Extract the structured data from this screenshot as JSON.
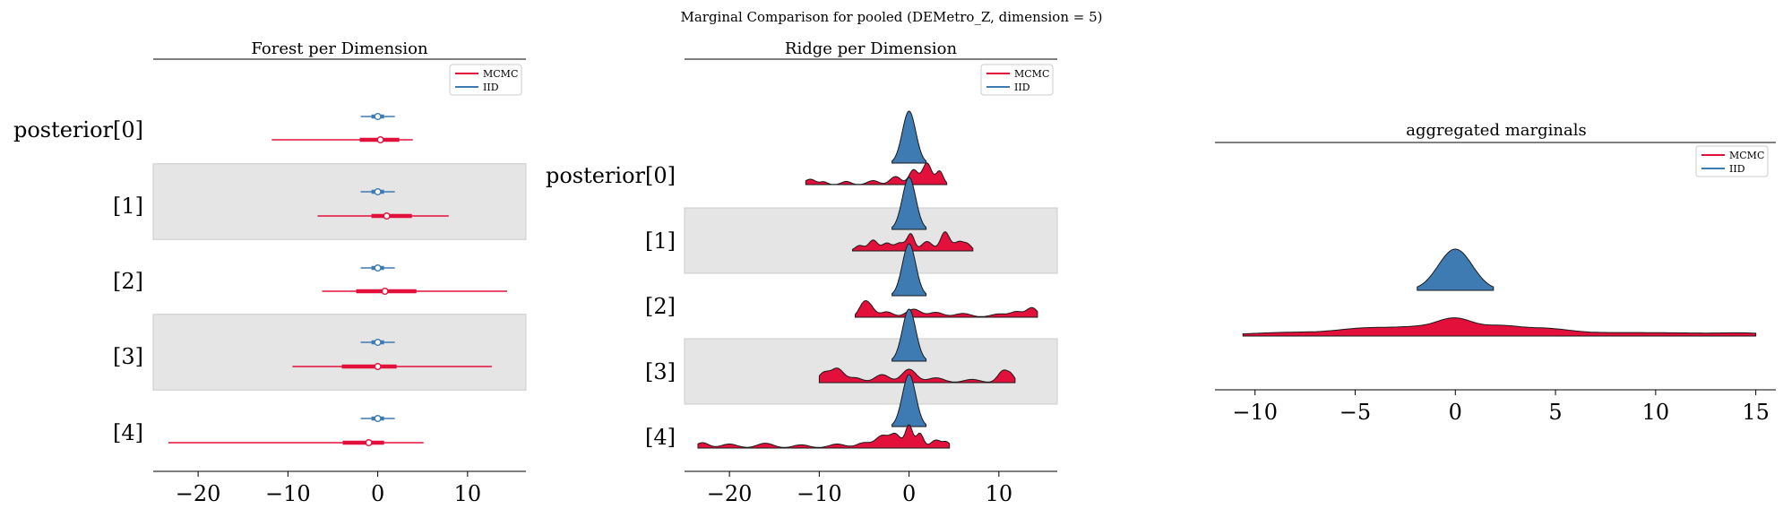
{
  "figure": {
    "suptitle": "Marginal Comparison for pooled (DEMetro_Z, dimension = 5)"
  },
  "colors": {
    "mcmc": "#e3103c",
    "iid": "#3f7bb3",
    "band": "#e5e5e5"
  },
  "chart_data": [
    {
      "type": "forest",
      "title": "Forest per Dimension",
      "rows": [
        "posterior[0]",
        "[1]",
        "[2]",
        "[3]",
        "[4]"
      ],
      "xlim": [
        -25,
        16.5
      ],
      "xticks": [
        -20,
        -10,
        0,
        10
      ],
      "legend": {
        "placement": "top-right",
        "entries": [
          "MCMC",
          "IID"
        ]
      },
      "series": [
        {
          "name": "MCMC",
          "median": [
            0.3,
            1.0,
            0.8,
            0.0,
            -1.0
          ],
          "hdi_full": [
            [
              -11.8,
              3.9
            ],
            [
              -6.7,
              7.9
            ],
            [
              -6.2,
              14.4
            ],
            [
              -9.5,
              12.7
            ],
            [
              -23.3,
              5.1
            ]
          ],
          "hdi_50": [
            [
              -2.0,
              2.4
            ],
            [
              -0.7,
              3.8
            ],
            [
              -2.4,
              4.3
            ],
            [
              -4.0,
              2.1
            ],
            [
              -3.9,
              0.7
            ]
          ]
        },
        {
          "name": "IID",
          "median": [
            0.0,
            0.0,
            0.0,
            0.0,
            0.0
          ],
          "hdi_full": [
            [
              -1.9,
              1.9
            ],
            [
              -1.9,
              1.9
            ],
            [
              -1.9,
              1.9
            ],
            [
              -1.9,
              1.9
            ],
            [
              -1.9,
              1.9
            ]
          ],
          "hdi_50": [
            [
              -0.7,
              0.7
            ],
            [
              -0.7,
              0.7
            ],
            [
              -0.7,
              0.7
            ],
            [
              -0.7,
              0.7
            ],
            [
              -0.7,
              0.7
            ]
          ]
        }
      ]
    },
    {
      "type": "ridge",
      "title": "Ridge per Dimension",
      "rows": [
        "posterior[0]",
        "[1]",
        "[2]",
        "[3]",
        "[4]"
      ],
      "xlim": [
        -25,
        16.5
      ],
      "xticks": [
        -20,
        -10,
        0,
        10
      ],
      "legend": {
        "placement": "top-right",
        "entries": [
          "MCMC",
          "IID"
        ]
      },
      "series": [
        {
          "name": "MCMC",
          "range": [
            [
              -11.5,
              4.2
            ],
            [
              -6.3,
              7.1
            ],
            [
              -6.0,
              14.3
            ],
            [
              -10.0,
              11.8
            ],
            [
              -23.5,
              4.5
            ]
          ],
          "peaks": [
            [
              [
                -11,
                0.2,
                0.6
              ],
              [
                -9.5,
                0.1,
                0.4
              ],
              [
                -7,
                0.12,
                0.5
              ],
              [
                -4,
                0.15,
                0.6
              ],
              [
                -1.5,
                0.3,
                0.6
              ],
              [
                0.5,
                0.55,
                0.5
              ],
              [
                2,
                0.8,
                0.5
              ],
              [
                3.4,
                0.5,
                0.4
              ]
            ],
            [
              [
                -5.5,
                0.2,
                0.5
              ],
              [
                -4,
                0.4,
                0.5
              ],
              [
                -2.5,
                0.28,
                0.5
              ],
              [
                -1,
                0.3,
                0.6
              ],
              [
                0.2,
                0.6,
                0.4
              ],
              [
                2,
                0.35,
                0.6
              ],
              [
                4,
                0.7,
                0.5
              ],
              [
                5.6,
                0.35,
                0.6
              ],
              [
                6.6,
                0.18,
                0.4
              ]
            ],
            [
              [
                -5.2,
                0.3,
                0.5
              ],
              [
                -4.5,
                0.45,
                0.6
              ],
              [
                -2.5,
                0.2,
                0.7
              ],
              [
                0.5,
                0.3,
                0.8
              ],
              [
                3,
                0.18,
                0.8
              ],
              [
                6,
                0.14,
                0.9
              ],
              [
                10,
                0.12,
                0.9
              ],
              [
                12,
                0.2,
                0.7
              ],
              [
                13.7,
                0.35,
                0.6
              ]
            ],
            [
              [
                -9.5,
                0.35,
                0.6
              ],
              [
                -8,
                0.52,
                0.7
              ],
              [
                -6,
                0.18,
                0.8
              ],
              [
                -3,
                0.3,
                0.8
              ],
              [
                0,
                0.5,
                0.8
              ],
              [
                3,
                0.18,
                0.9
              ],
              [
                7,
                0.12,
                0.9
              ],
              [
                10.5,
                0.45,
                0.6
              ],
              [
                11.4,
                0.2,
                0.4
              ]
            ],
            [
              [
                -23,
                0.2,
                0.7
              ],
              [
                -20,
                0.15,
                0.9
              ],
              [
                -16,
                0.18,
                0.9
              ],
              [
                -12,
                0.12,
                0.9
              ],
              [
                -8,
                0.15,
                0.9
              ],
              [
                -5,
                0.2,
                0.8
              ],
              [
                -3,
                0.45,
                0.7
              ],
              [
                -1.5,
                0.5,
                0.6
              ],
              [
                0,
                0.85,
                0.4
              ],
              [
                1.2,
                0.55,
                0.4
              ],
              [
                3,
                0.3,
                0.6
              ],
              [
                4.2,
                0.2,
                0.4
              ]
            ]
          ]
        },
        {
          "name": "IID",
          "range": [
            [
              -1.9,
              1.9
            ],
            [
              -1.9,
              1.9
            ],
            [
              -1.9,
              1.9
            ],
            [
              -1.9,
              1.9
            ],
            [
              -1.9,
              1.9
            ]
          ]
        }
      ]
    },
    {
      "type": "ridge",
      "title": "aggregated marginals",
      "xlim": [
        -12,
        16
      ],
      "xticks": [
        -10,
        -5,
        0,
        5,
        10,
        15
      ],
      "legend": {
        "placement": "top-right",
        "entries": [
          "MCMC",
          "IID"
        ]
      },
      "series": [
        {
          "name": "IID",
          "range": [
            -1.9,
            1.9
          ]
        },
        {
          "name": "MCMC",
          "range": [
            -10.6,
            15
          ],
          "peaks": [
            [
              -8,
              0.1,
              2
            ],
            [
              -4.5,
              0.22,
              1.3
            ],
            [
              -2,
              0.25,
              1.2
            ],
            [
              0,
              0.55,
              0.9
            ],
            [
              2.2,
              0.3,
              1
            ],
            [
              4.5,
              0.22,
              1.2
            ],
            [
              8,
              0.08,
              2
            ],
            [
              12,
              0.06,
              2
            ],
            [
              14.5,
              0.05,
              1
            ]
          ]
        }
      ]
    }
  ]
}
